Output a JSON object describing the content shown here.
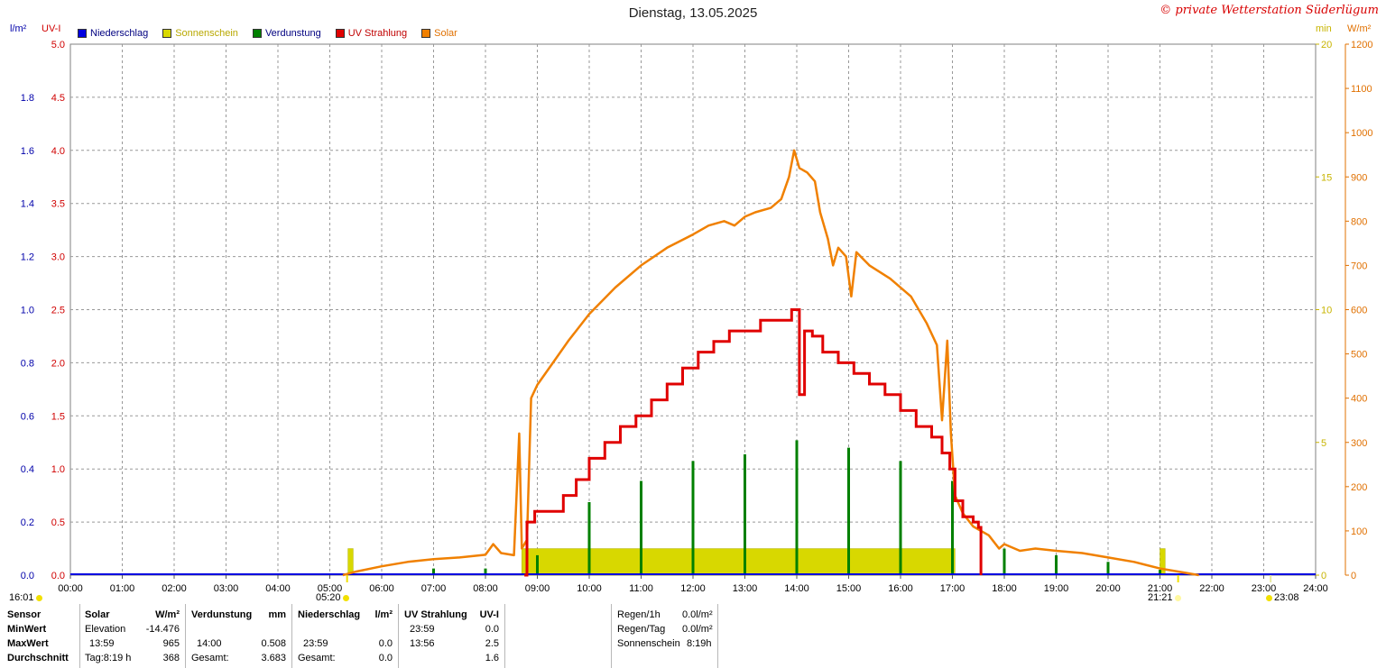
{
  "title": "Dienstag, 13.05.2025",
  "copyright": "© private Wetterstation Süderlügum",
  "axes": {
    "left_outer_unit": "l/m²",
    "left_inner_unit": "UV-I",
    "right_inner_unit": "min",
    "right_outer_unit": "W/m²",
    "left_outer_ticks": [
      "0.0",
      "0.2",
      "0.4",
      "0.6",
      "0.8",
      "1.0",
      "1.2",
      "1.4",
      "1.6",
      "1.8"
    ],
    "left_inner_ticks": [
      "0.0",
      "0.5",
      "1.0",
      "1.5",
      "2.0",
      "2.5",
      "3.0",
      "3.5",
      "4.0",
      "4.5",
      "5.0"
    ],
    "right_inner_ticks": [
      "0",
      "5",
      "10",
      "15",
      "20"
    ],
    "right_outer_ticks": [
      "0",
      "100",
      "200",
      "300",
      "400",
      "500",
      "600",
      "700",
      "800",
      "900",
      "1000",
      "1100",
      "1200"
    ],
    "x_ticks": [
      "00:00",
      "01:00",
      "02:00",
      "03:00",
      "04:00",
      "05:00",
      "06:00",
      "07:00",
      "08:00",
      "09:00",
      "10:00",
      "11:00",
      "12:00",
      "13:00",
      "14:00",
      "15:00",
      "16:00",
      "17:00",
      "18:00",
      "19:00",
      "20:00",
      "21:00",
      "22:00",
      "23:00",
      "24:00"
    ],
    "colors": {
      "left_outer": "#0000aa",
      "left_inner": "#d00000",
      "right_inner": "#c8b400",
      "right_outer": "#e07000"
    }
  },
  "legend": [
    {
      "label": "Niederschlag",
      "color": "#0000e0",
      "text_color": "#000080"
    },
    {
      "label": "Sonnenschein",
      "color": "#d8d800",
      "text_color": "#b8a800"
    },
    {
      "label": "Verdunstung",
      "color": "#008000",
      "text_color": "#000080"
    },
    {
      "label": "UV Strahlung",
      "color": "#e00000",
      "text_color": "#c00000"
    },
    {
      "label": "Solar",
      "color": "#f08000",
      "text_color": "#e07000"
    }
  ],
  "sun_markers": {
    "moonrise": "16:01",
    "sunrise": "05:20",
    "sunset": "21:21",
    "moonset": "23:08"
  },
  "chart_data": {
    "type": "line",
    "x_unit": "hours",
    "xlim": [
      0,
      24
    ],
    "series": [
      {
        "name": "Solar",
        "unit": "W/m²",
        "ylim": [
          0,
          1200
        ],
        "color": "#f08000",
        "points": [
          [
            5.25,
            0
          ],
          [
            5.5,
            8
          ],
          [
            6.0,
            20
          ],
          [
            6.5,
            30
          ],
          [
            7.0,
            36
          ],
          [
            7.5,
            40
          ],
          [
            8.0,
            46
          ],
          [
            8.15,
            70
          ],
          [
            8.3,
            50
          ],
          [
            8.55,
            45
          ],
          [
            8.65,
            320
          ],
          [
            8.7,
            60
          ],
          [
            8.8,
            80
          ],
          [
            8.88,
            400
          ],
          [
            9.0,
            430
          ],
          [
            9.3,
            480
          ],
          [
            9.6,
            530
          ],
          [
            10.0,
            590
          ],
          [
            10.5,
            650
          ],
          [
            11.0,
            700
          ],
          [
            11.5,
            740
          ],
          [
            12.0,
            770
          ],
          [
            12.3,
            790
          ],
          [
            12.6,
            800
          ],
          [
            12.8,
            790
          ],
          [
            13.0,
            810
          ],
          [
            13.2,
            820
          ],
          [
            13.5,
            830
          ],
          [
            13.7,
            850
          ],
          [
            13.85,
            900
          ],
          [
            13.95,
            960
          ],
          [
            14.05,
            920
          ],
          [
            14.2,
            910
          ],
          [
            14.35,
            890
          ],
          [
            14.45,
            820
          ],
          [
            14.6,
            760
          ],
          [
            14.7,
            700
          ],
          [
            14.8,
            740
          ],
          [
            14.95,
            720
          ],
          [
            15.05,
            630
          ],
          [
            15.15,
            730
          ],
          [
            15.4,
            700
          ],
          [
            15.8,
            670
          ],
          [
            16.2,
            630
          ],
          [
            16.5,
            570
          ],
          [
            16.7,
            520
          ],
          [
            16.8,
            350
          ],
          [
            16.9,
            530
          ],
          [
            16.97,
            320
          ],
          [
            17.05,
            180
          ],
          [
            17.2,
            140
          ],
          [
            17.4,
            110
          ],
          [
            17.7,
            90
          ],
          [
            17.9,
            60
          ],
          [
            18.0,
            70
          ],
          [
            18.3,
            55
          ],
          [
            18.6,
            60
          ],
          [
            19.0,
            55
          ],
          [
            19.5,
            50
          ],
          [
            20.0,
            40
          ],
          [
            20.5,
            30
          ],
          [
            21.0,
            15
          ],
          [
            21.5,
            5
          ],
          [
            21.75,
            0
          ]
        ]
      },
      {
        "name": "UV Strahlung",
        "unit": "UV-I",
        "ylim": [
          0,
          5
        ],
        "color": "#e00000",
        "points": [
          [
            8.75,
            0
          ],
          [
            8.8,
            0.5
          ],
          [
            8.95,
            0.6
          ],
          [
            9.3,
            0.6
          ],
          [
            9.5,
            0.75
          ],
          [
            9.75,
            0.9
          ],
          [
            10.0,
            1.1
          ],
          [
            10.3,
            1.25
          ],
          [
            10.6,
            1.4
          ],
          [
            10.9,
            1.5
          ],
          [
            11.2,
            1.65
          ],
          [
            11.5,
            1.8
          ],
          [
            11.8,
            1.95
          ],
          [
            12.1,
            2.1
          ],
          [
            12.4,
            2.2
          ],
          [
            12.7,
            2.3
          ],
          [
            13.0,
            2.3
          ],
          [
            13.3,
            2.4
          ],
          [
            13.7,
            2.4
          ],
          [
            13.9,
            2.5
          ],
          [
            14.05,
            1.7
          ],
          [
            14.15,
            2.3
          ],
          [
            14.3,
            2.25
          ],
          [
            14.5,
            2.1
          ],
          [
            14.8,
            2.0
          ],
          [
            15.1,
            1.9
          ],
          [
            15.4,
            1.8
          ],
          [
            15.7,
            1.7
          ],
          [
            16.0,
            1.55
          ],
          [
            16.3,
            1.4
          ],
          [
            16.6,
            1.3
          ],
          [
            16.8,
            1.15
          ],
          [
            16.95,
            1.0
          ],
          [
            17.05,
            0.7
          ],
          [
            17.2,
            0.55
          ],
          [
            17.4,
            0.5
          ],
          [
            17.5,
            0.45
          ],
          [
            17.55,
            0
          ]
        ]
      },
      {
        "name": "Sonnenschein",
        "unit": "min",
        "ylim": [
          0,
          20
        ],
        "color": "#d8d800",
        "bars": [
          [
            5.35,
            5.45,
            1
          ],
          [
            8.7,
            17.05,
            1
          ],
          [
            21.0,
            21.1,
            1
          ]
        ]
      },
      {
        "name": "Verdunstung",
        "unit": "mm",
        "color": "#008000",
        "spikes": [
          [
            7.0,
            0.025
          ],
          [
            8.0,
            0.025
          ],
          [
            9.0,
            0.075
          ],
          [
            10.0,
            0.275
          ],
          [
            11.0,
            0.355
          ],
          [
            12.0,
            0.43
          ],
          [
            13.0,
            0.455
          ],
          [
            14.0,
            0.508
          ],
          [
            15.0,
            0.48
          ],
          [
            16.0,
            0.43
          ],
          [
            17.0,
            0.355
          ],
          [
            18.0,
            0.1
          ],
          [
            19.0,
            0.075
          ],
          [
            20.0,
            0.05
          ],
          [
            21.0,
            0.02
          ]
        ]
      },
      {
        "name": "Niederschlag",
        "unit": "l/m²",
        "color": "#0000e0",
        "points": [
          [
            0,
            0
          ],
          [
            24,
            0
          ]
        ]
      }
    ]
  },
  "stats": {
    "sensor_label": "Sensor",
    "min_label": "MinWert",
    "max_label": "MaxWert",
    "avg_label": "Durchschnitt",
    "solar": {
      "header": "Solar",
      "unit": "W/m²",
      "min_time": "Elevation",
      "min_value": "-14.476",
      "max_time": "13:59",
      "max_value": "965",
      "avg_time": "Tag:8:19 h",
      "avg_value": "368"
    },
    "evap": {
      "header": "Verdunstung",
      "unit": "mm",
      "max_time": "14:00",
      "max_value": "0.508",
      "avg_time": "Gesamt:",
      "avg_value": "3.683"
    },
    "rain": {
      "header": "Niederschlag",
      "unit": "l/m²",
      "max_time": "23:59",
      "max_value": "0.0",
      "avg_time": "Gesamt:",
      "avg_value": "0.0"
    },
    "uv": {
      "header": "UV Strahlung",
      "unit": "UV-I",
      "min_time": "23:59",
      "min_value": "0.0",
      "max_time": "13:56",
      "max_value": "2.5",
      "avg_value": "1.6"
    },
    "summary": [
      {
        "label": "Regen/1h",
        "value": "0.0l/m²"
      },
      {
        "label": "Regen/Tag",
        "value": "0.0l/m²"
      },
      {
        "label": "Sonnenschein",
        "value": "8:19h"
      }
    ]
  }
}
